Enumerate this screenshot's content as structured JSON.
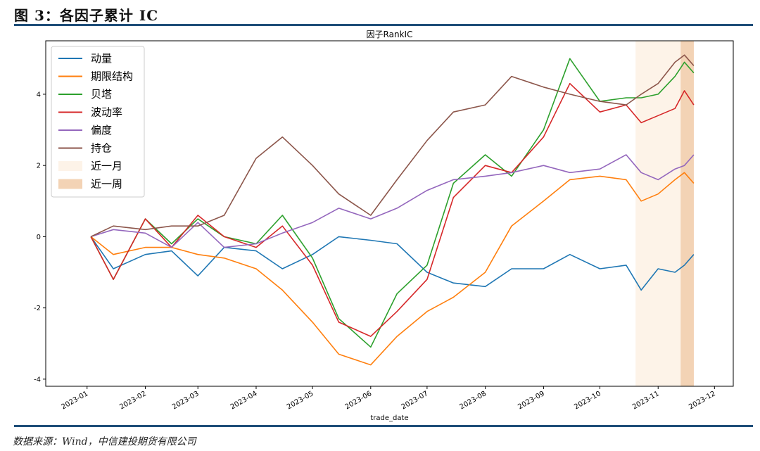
{
  "header": {
    "title": "图 3：各因子累计 IC"
  },
  "footer": {
    "source": "数据来源：Wind，中信建投期货有限公司"
  },
  "chart_data": {
    "type": "line",
    "title": "因子RankIC",
    "xlabel": "trade_date",
    "ylabel": "",
    "x_ticks": [
      "2023-01",
      "2023-02",
      "2023-03",
      "2023-04",
      "2023-05",
      "2023-06",
      "2023-07",
      "2023-08",
      "2023-09",
      "2023-10",
      "2023-11",
      "2023-12"
    ],
    "y_ticks": [
      -4,
      -2,
      0,
      2,
      4
    ],
    "xlim": [
      "2022-12-10",
      "2023-12-11"
    ],
    "ylim": [
      -4.2,
      5.5
    ],
    "legend_position": "top-left",
    "grid": false,
    "x": [
      "2023-01-03",
      "2023-01-15",
      "2023-02-01",
      "2023-02-15",
      "2023-03-01",
      "2023-03-15",
      "2023-04-01",
      "2023-04-15",
      "2023-05-01",
      "2023-05-15",
      "2023-06-01",
      "2023-06-15",
      "2023-07-01",
      "2023-07-15",
      "2023-08-01",
      "2023-08-15",
      "2023-09-01",
      "2023-09-15",
      "2023-10-01",
      "2023-10-15",
      "2023-10-23",
      "2023-11-01",
      "2023-11-10",
      "2023-11-15",
      "2023-11-20"
    ],
    "series": [
      {
        "name": "动量",
        "color": "#1f77b4",
        "values": [
          0,
          -0.9,
          -0.5,
          -0.4,
          -1.1,
          -0.3,
          -0.4,
          -0.9,
          -0.5,
          0.0,
          -0.1,
          -0.2,
          -1.0,
          -1.3,
          -1.4,
          -0.9,
          -0.9,
          -0.5,
          -0.9,
          -0.8,
          -1.5,
          -0.9,
          -1.0,
          -0.8,
          -0.5
        ]
      },
      {
        "name": "期限结构",
        "color": "#ff7f0e",
        "values": [
          0,
          -0.5,
          -0.3,
          -0.3,
          -0.5,
          -0.6,
          -0.9,
          -1.5,
          -2.4,
          -3.3,
          -3.6,
          -2.8,
          -2.1,
          -1.7,
          -1.0,
          0.3,
          1.0,
          1.6,
          1.7,
          1.6,
          1.0,
          1.2,
          1.6,
          1.8,
          1.5
        ]
      },
      {
        "name": "贝塔",
        "color": "#2ca02c",
        "values": [
          0,
          -1.2,
          0.5,
          -0.2,
          0.5,
          0.0,
          -0.2,
          0.6,
          -0.6,
          -2.3,
          -3.1,
          -1.6,
          -0.8,
          1.5,
          2.3,
          1.7,
          3.0,
          5.0,
          3.8,
          3.9,
          3.9,
          4.0,
          4.5,
          4.9,
          4.6
        ]
      },
      {
        "name": "波动率",
        "color": "#d62728",
        "values": [
          0,
          -1.2,
          0.5,
          -0.3,
          0.6,
          0.0,
          -0.3,
          0.3,
          -0.8,
          -2.4,
          -2.8,
          -2.1,
          -1.2,
          1.1,
          2.0,
          1.8,
          2.8,
          4.3,
          3.5,
          3.7,
          3.2,
          3.4,
          3.6,
          4.1,
          3.7
        ]
      },
      {
        "name": "偏度",
        "color": "#9467bd",
        "values": [
          0,
          0.2,
          0.1,
          -0.3,
          0.4,
          -0.3,
          -0.2,
          0.1,
          0.4,
          0.8,
          0.5,
          0.8,
          1.3,
          1.6,
          1.7,
          1.8,
          2.0,
          1.8,
          1.9,
          2.3,
          1.8,
          1.6,
          1.9,
          2.0,
          2.3
        ]
      },
      {
        "name": "持仓",
        "color": "#8c564b",
        "values": [
          0,
          0.3,
          0.2,
          0.3,
          0.3,
          0.6,
          2.2,
          2.8,
          2.0,
          1.2,
          0.6,
          1.6,
          2.7,
          3.5,
          3.7,
          4.5,
          4.2,
          4.0,
          3.8,
          3.7,
          4.0,
          4.3,
          4.9,
          5.1,
          4.8
        ]
      }
    ],
    "shaded": [
      {
        "name": "近一月",
        "color": "#fdf3e8",
        "x_range": [
          "2023-10-20",
          "2023-11-20"
        ]
      },
      {
        "name": "近一周",
        "color": "#f3d3b5",
        "x_range": [
          "2023-11-13",
          "2023-11-20"
        ]
      }
    ]
  }
}
